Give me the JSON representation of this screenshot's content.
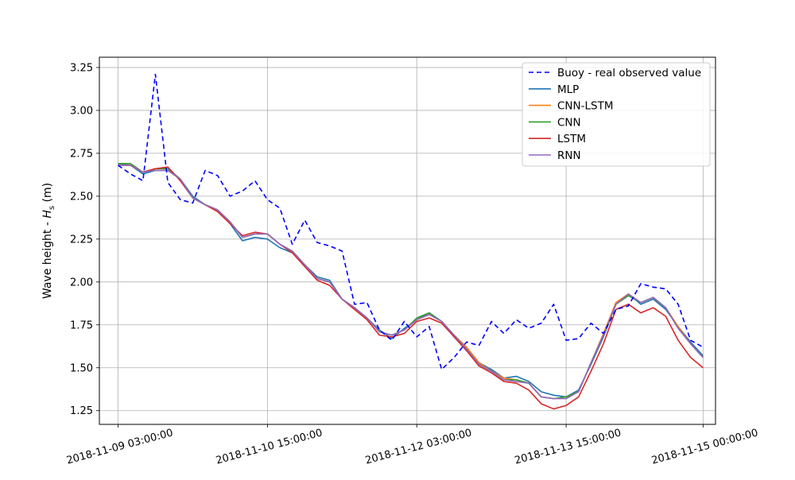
{
  "chart_data": {
    "type": "line",
    "title": "",
    "xlabel": "",
    "ylabel": "Wave height - Hs (m)",
    "ylabel_prefix": "Wave height - ",
    "ylabel_var": "H",
    "ylabel_sub": "s",
    "ylabel_unit": " (m)",
    "grid": true,
    "legend_position": "top-right",
    "ylim": [
      1.17,
      3.31
    ],
    "xlim": [
      -1.5,
      48
    ],
    "y_ticks": [
      1.25,
      1.5,
      1.75,
      2.0,
      2.25,
      2.5,
      2.75,
      3.0,
      3.25
    ],
    "y_tick_labels": [
      "1.25",
      "1.50",
      "1.75",
      "2.00",
      "2.25",
      "2.50",
      "2.75",
      "3.00",
      "3.25"
    ],
    "x_ticks": [
      0,
      12,
      24,
      36,
      47
    ],
    "x_tick_labels": [
      "2018-11-09 03:00:00",
      "2018-11-10 15:00:00",
      "2018-11-12 03:00:00",
      "2018-11-13 15:00:00",
      "2018-11-15 00:00:00"
    ],
    "x": [
      0,
      1,
      2,
      3,
      4,
      5,
      6,
      7,
      8,
      9,
      10,
      11,
      12,
      13,
      14,
      15,
      16,
      17,
      18,
      19,
      20,
      21,
      22,
      23,
      24,
      25,
      26,
      27,
      28,
      29,
      30,
      31,
      32,
      33,
      34,
      35,
      36,
      37,
      38,
      39,
      40,
      41,
      42,
      43,
      44,
      45,
      46,
      47
    ],
    "series": [
      {
        "name": "Buoy - real observed value",
        "color": "#0000ff",
        "dashed": true,
        "values": [
          2.68,
          2.63,
          2.59,
          3.21,
          2.58,
          2.48,
          2.46,
          2.65,
          2.62,
          2.5,
          2.53,
          2.59,
          2.48,
          2.43,
          2.22,
          2.36,
          2.23,
          2.21,
          2.18,
          1.87,
          1.88,
          1.72,
          1.66,
          1.77,
          1.68,
          1.74,
          1.49,
          1.56,
          1.65,
          1.63,
          1.77,
          1.7,
          1.78,
          1.73,
          1.76,
          1.87,
          1.66,
          1.67,
          1.76,
          1.7,
          1.84,
          1.86,
          1.99,
          1.97,
          1.96,
          1.87,
          1.66,
          1.62
        ]
      },
      {
        "name": "MLP",
        "color": "#1f77b4",
        "dashed": false,
        "values": [
          2.69,
          2.68,
          2.63,
          2.65,
          2.65,
          2.6,
          2.5,
          2.45,
          2.42,
          2.34,
          2.24,
          2.26,
          2.25,
          2.2,
          2.17,
          2.1,
          2.03,
          2.01,
          1.9,
          1.85,
          1.79,
          1.72,
          1.67,
          1.73,
          1.78,
          1.82,
          1.77,
          1.68,
          1.6,
          1.53,
          1.49,
          1.44,
          1.45,
          1.42,
          1.36,
          1.34,
          1.33,
          1.37,
          1.52,
          1.68,
          1.87,
          1.93,
          1.87,
          1.9,
          1.84,
          1.74,
          1.65,
          1.57
        ]
      },
      {
        "name": "CNN-LSTM",
        "color": "#ff7f0e",
        "dashed": false,
        "values": [
          2.69,
          2.69,
          2.64,
          2.66,
          2.66,
          2.6,
          2.49,
          2.45,
          2.42,
          2.35,
          2.26,
          2.28,
          2.28,
          2.22,
          2.18,
          2.1,
          2.02,
          2.0,
          1.9,
          1.85,
          1.79,
          1.71,
          1.69,
          1.72,
          1.78,
          1.81,
          1.77,
          1.69,
          1.62,
          1.53,
          1.48,
          1.44,
          1.43,
          1.41,
          1.33,
          1.32,
          1.33,
          1.36,
          1.53,
          1.7,
          1.88,
          1.93,
          1.88,
          1.91,
          1.85,
          1.74,
          1.64,
          1.56
        ]
      },
      {
        "name": "CNN",
        "color": "#2ca02c",
        "dashed": false,
        "values": [
          2.69,
          2.69,
          2.64,
          2.66,
          2.66,
          2.6,
          2.49,
          2.45,
          2.42,
          2.35,
          2.26,
          2.28,
          2.28,
          2.22,
          2.18,
          2.1,
          2.02,
          2.0,
          1.9,
          1.85,
          1.79,
          1.71,
          1.69,
          1.72,
          1.79,
          1.82,
          1.77,
          1.69,
          1.61,
          1.52,
          1.48,
          1.43,
          1.43,
          1.41,
          1.33,
          1.32,
          1.33,
          1.36,
          1.53,
          1.69,
          1.87,
          1.92,
          1.88,
          1.91,
          1.85,
          1.73,
          1.64,
          1.56
        ]
      },
      {
        "name": "LSTM",
        "color": "#d62728",
        "dashed": false,
        "values": [
          2.68,
          2.68,
          2.64,
          2.66,
          2.67,
          2.59,
          2.49,
          2.45,
          2.41,
          2.34,
          2.27,
          2.29,
          2.28,
          2.22,
          2.17,
          2.09,
          2.01,
          1.98,
          1.9,
          1.84,
          1.78,
          1.69,
          1.68,
          1.7,
          1.77,
          1.79,
          1.76,
          1.68,
          1.6,
          1.51,
          1.47,
          1.42,
          1.41,
          1.37,
          1.29,
          1.26,
          1.28,
          1.33,
          1.48,
          1.64,
          1.84,
          1.87,
          1.82,
          1.85,
          1.8,
          1.66,
          1.56,
          1.5
        ]
      },
      {
        "name": "RNN",
        "color": "#9467bd",
        "dashed": false,
        "values": [
          2.68,
          2.68,
          2.64,
          2.65,
          2.65,
          2.6,
          2.49,
          2.45,
          2.42,
          2.35,
          2.26,
          2.28,
          2.28,
          2.22,
          2.18,
          2.1,
          2.02,
          2.0,
          1.9,
          1.85,
          1.79,
          1.71,
          1.69,
          1.72,
          1.78,
          1.81,
          1.77,
          1.69,
          1.61,
          1.52,
          1.48,
          1.43,
          1.42,
          1.41,
          1.33,
          1.32,
          1.32,
          1.36,
          1.53,
          1.69,
          1.87,
          1.93,
          1.88,
          1.91,
          1.85,
          1.73,
          1.64,
          1.56
        ]
      }
    ]
  }
}
